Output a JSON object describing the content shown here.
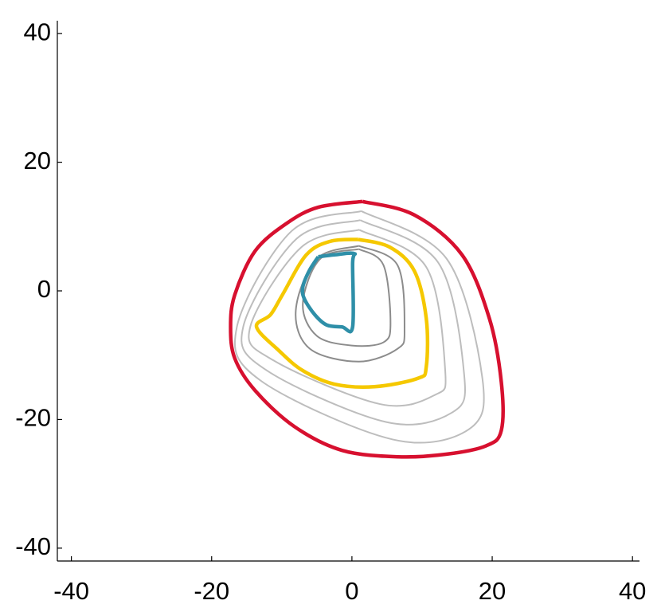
{
  "chart_data": {
    "type": "line",
    "xlim": [
      -42,
      41
    ],
    "ylim": [
      -42,
      42
    ],
    "xticks": [
      -40,
      -20,
      0,
      20,
      40
    ],
    "yticks": [
      -40,
      -20,
      0,
      20,
      40
    ],
    "grid": false,
    "series": [
      {
        "color": "#bdbdbd",
        "x": [
          1.35,
          13.5,
          18.6,
          16.7,
          5.8,
          -12.95,
          -16.4,
          -8.6,
          1.35
        ],
        "y": [
          12.4,
          5.0,
          -13.6,
          -21.5,
          -23.1,
          -14.0,
          -5.6,
          9.3,
          12.4
        ]
      },
      {
        "color": "#bdbdbd",
        "x": [
          1.2,
          12.3,
          16.0,
          14.3,
          4.9,
          -12.1,
          -15.5,
          -7.9,
          1.2
        ],
        "y": [
          11.0,
          4.4,
          -13.0,
          -18.9,
          -20.4,
          -12.4,
          -5.6,
          8.1,
          11.0
        ]
      },
      {
        "color": "#bdbdbd",
        "x": [
          1.05,
          10.6,
          13.3,
          11.8,
          4.0,
          -11.2,
          -14.5,
          -7.2,
          1.05
        ],
        "y": [
          9.5,
          3.7,
          -12.4,
          -16.2,
          -17.6,
          -10.8,
          -5.6,
          6.8,
          9.5
        ]
      },
      {
        "color": "#8c8c8c",
        "x": [
          1,
          6.5,
          7.5,
          6.5,
          1,
          -6,
          -8,
          -5,
          1
        ],
        "y": [
          7,
          4,
          -6,
          -9,
          -11,
          -9,
          -3,
          5,
          7
        ]
      },
      {
        "color": "#8c8c8c",
        "x": [
          1,
          4.5,
          5.5,
          4.5,
          0,
          -5,
          -7,
          -4.5,
          1
        ],
        "y": [
          6.5,
          4,
          -5,
          -8,
          -8.5,
          -7,
          -2,
          5,
          6.5
        ]
      },
      {
        "color": "#d7102f",
        "x": [
          1.5,
          8.9,
          15.7,
          19.6,
          21.3,
          21.3,
          19.1,
          13.4,
          6.6,
          -1.4,
          -8.2,
          -13.8,
          -16.7,
          -17.3,
          -16.7,
          -13.8,
          -9.3,
          -4.8,
          1.5
        ],
        "y": [
          13.9,
          11.8,
          5.6,
          -4.3,
          -14.2,
          -21.7,
          -24.1,
          -25.4,
          -25.8,
          -24.8,
          -21.1,
          -15.5,
          -10.5,
          -5.6,
          -0.6,
          6.2,
          10.5,
          13.0,
          13.9
        ]
      },
      {
        "color": "#f5c800",
        "x": [
          0.9,
          5.4,
          8.9,
          10.6,
          10.6,
          9.4,
          3.2,
          -2.5,
          -7.0,
          -10.4,
          -13.6,
          -11.6,
          -9.9,
          -6.5,
          -3.1,
          0.9
        ],
        "y": [
          8.0,
          6.8,
          3.1,
          -4.3,
          -11.8,
          -13.6,
          -14.9,
          -14.5,
          -12.4,
          -9.3,
          -5.6,
          -3.7,
          -0.6,
          5.6,
          7.7,
          8.0
        ]
      },
      {
        "color": "#2e8fa8",
        "x": [
          -4.8,
          -2.5,
          0.3,
          0.1,
          0.1,
          -1.4,
          -3.6,
          -5.3,
          -6.8,
          -7.0,
          -6.1,
          -4.8
        ],
        "y": [
          5.3,
          5.6,
          5.8,
          4.3,
          -5.6,
          -5.6,
          -5.3,
          -3.7,
          -1.2,
          0.6,
          3.1,
          5.3
        ]
      }
    ]
  }
}
